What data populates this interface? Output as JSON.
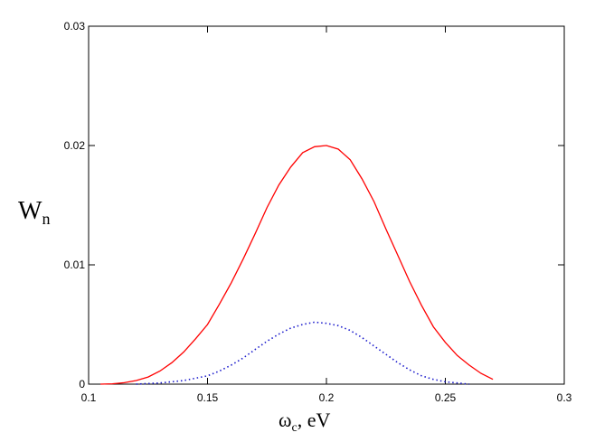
{
  "chart_data": {
    "type": "line",
    "xlim": [
      0.1,
      0.3
    ],
    "ylim": [
      0,
      0.03
    ],
    "x_ticks": [
      "0.1",
      "0.15",
      "0.2",
      "0.25",
      "0.3"
    ],
    "y_ticks": [
      "0",
      "0.01",
      "0.02",
      "0.03"
    ],
    "ylabel": {
      "main": "W",
      "sub": "n"
    },
    "xlabel": {
      "main": "ω",
      "sub": "c",
      "suffix": ", eV"
    },
    "grid": false,
    "legend": "none",
    "series": [
      {
        "color": "#ff0000",
        "style": "solid",
        "points": [
          [
            0.105,
            0
          ],
          [
            0.11,
            3e-05
          ],
          [
            0.115,
            0.00012
          ],
          [
            0.12,
            0.0003
          ],
          [
            0.125,
            0.0006
          ],
          [
            0.13,
            0.0011
          ],
          [
            0.135,
            0.0018
          ],
          [
            0.14,
            0.0027
          ],
          [
            0.145,
            0.0038
          ],
          [
            0.15,
            0.005
          ],
          [
            0.155,
            0.0067
          ],
          [
            0.16,
            0.0085
          ],
          [
            0.165,
            0.0105
          ],
          [
            0.17,
            0.0126
          ],
          [
            0.175,
            0.0148
          ],
          [
            0.18,
            0.0167
          ],
          [
            0.185,
            0.0182
          ],
          [
            0.19,
            0.0194
          ],
          [
            0.195,
            0.0199
          ],
          [
            0.2,
            0.02
          ],
          [
            0.205,
            0.0197
          ],
          [
            0.21,
            0.0188
          ],
          [
            0.215,
            0.0172
          ],
          [
            0.22,
            0.0153
          ],
          [
            0.225,
            0.013
          ],
          [
            0.23,
            0.0108
          ],
          [
            0.235,
            0.0086
          ],
          [
            0.24,
            0.0066
          ],
          [
            0.245,
            0.0048
          ],
          [
            0.25,
            0.0035
          ],
          [
            0.255,
            0.0024
          ],
          [
            0.26,
            0.0016
          ],
          [
            0.265,
            0.0009
          ],
          [
            0.27,
            0.0004
          ]
        ]
      },
      {
        "color": "#1a1acc",
        "style": "dotted",
        "points": [
          [
            0.12,
            0
          ],
          [
            0.13,
            0.0001
          ],
          [
            0.14,
            0.0003
          ],
          [
            0.15,
            0.0007
          ],
          [
            0.155,
            0.0011
          ],
          [
            0.16,
            0.0016
          ],
          [
            0.165,
            0.0022
          ],
          [
            0.17,
            0.0029
          ],
          [
            0.175,
            0.0036
          ],
          [
            0.18,
            0.0042
          ],
          [
            0.185,
            0.0047
          ],
          [
            0.19,
            0.005
          ],
          [
            0.195,
            0.0052
          ],
          [
            0.2,
            0.0051
          ],
          [
            0.205,
            0.0049
          ],
          [
            0.21,
            0.0045
          ],
          [
            0.215,
            0.0039
          ],
          [
            0.22,
            0.0032
          ],
          [
            0.225,
            0.0025
          ],
          [
            0.23,
            0.0018
          ],
          [
            0.235,
            0.0012
          ],
          [
            0.24,
            0.0007
          ],
          [
            0.245,
            0.0004
          ],
          [
            0.25,
            0.0002
          ],
          [
            0.255,
            0.0001
          ],
          [
            0.26,
            0
          ]
        ]
      }
    ]
  }
}
